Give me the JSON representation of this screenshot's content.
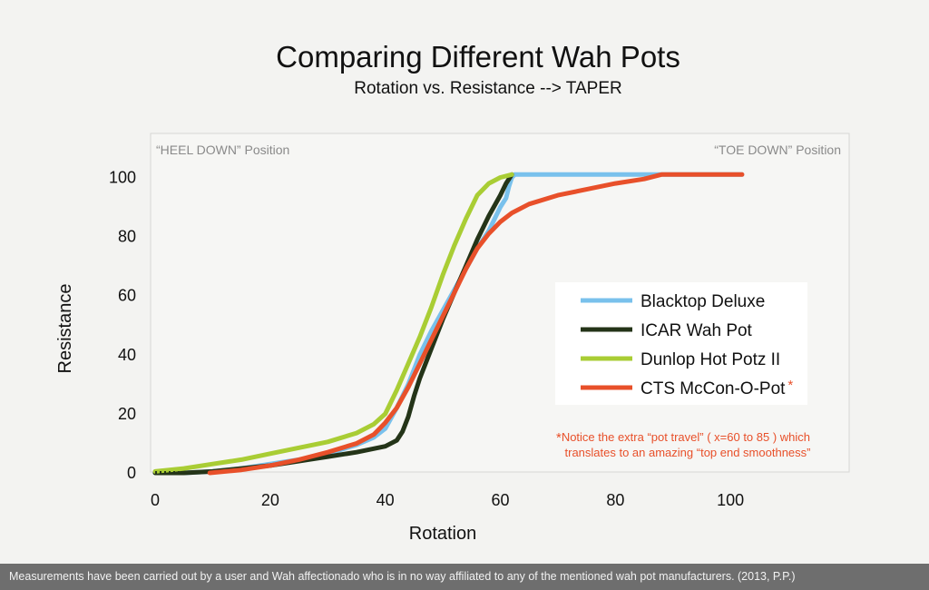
{
  "chart_data": {
    "type": "line",
    "title": "Comparing Different Wah Pots",
    "subtitle": "Rotation vs. Resistance  --> TAPER",
    "xlabel": "Rotation",
    "ylabel": "Resistance",
    "xlim": [
      0,
      120
    ],
    "ylim": [
      0,
      110
    ],
    "xticks": [
      0,
      20,
      40,
      60,
      80,
      100
    ],
    "yticks": [
      0,
      20,
      40,
      60,
      80,
      100
    ],
    "heel_label": "“HEEL DOWN” Position",
    "toe_label": "“TOE DOWN” Position",
    "legend_position": "right",
    "series": [
      {
        "name": "Blacktop Deluxe",
        "color": "#79c1ec",
        "x": [
          0,
          5,
          10,
          15,
          20,
          25,
          30,
          35,
          38,
          40,
          42,
          44,
          46,
          48,
          50,
          52,
          54,
          56,
          58,
          59,
          60,
          61,
          61.5,
          62,
          62.5,
          70,
          80,
          90,
          102
        ],
        "y": [
          0,
          0,
          0.5,
          1.5,
          3,
          4.5,
          6.5,
          9.5,
          12,
          15,
          22,
          30,
          40,
          48,
          55,
          62,
          69,
          76,
          82,
          86,
          90,
          93,
          97,
          100,
          101,
          101,
          101,
          101,
          101
        ]
      },
      {
        "name": "ICAR Wah Pot",
        "color": "#243418",
        "x": [
          0,
          5,
          10,
          15,
          20,
          25,
          30,
          35,
          40,
          42,
          43,
          44,
          45,
          46,
          48,
          50,
          52,
          54,
          56,
          58,
          60,
          61,
          62
        ],
        "y": [
          0,
          0,
          0.5,
          1.5,
          2.5,
          4,
          5.5,
          7,
          9,
          11,
          14,
          19,
          26,
          32,
          42,
          52,
          61,
          70,
          79,
          87,
          94,
          98,
          101
        ]
      },
      {
        "name": "Dunlop Hot Potz II",
        "color": "#a9cd34",
        "x": [
          0,
          5,
          10,
          15,
          20,
          25,
          30,
          35,
          38,
          40,
          42,
          44,
          46,
          48,
          50,
          52,
          54,
          56,
          58,
          60,
          62
        ],
        "y": [
          0.5,
          1.5,
          3,
          4.5,
          6.5,
          8.5,
          10.5,
          13.5,
          16.5,
          20,
          28,
          37,
          46,
          56,
          67,
          77,
          86,
          94,
          98,
          100,
          101
        ]
      },
      {
        "name": "CTS McCon-O-Pot",
        "color": "#e8502a",
        "x": [
          9.5,
          15,
          20,
          25,
          30,
          35,
          38,
          40,
          42,
          44,
          46,
          48,
          50,
          52,
          54,
          56,
          58,
          60,
          62,
          65,
          70,
          75,
          80,
          85,
          88,
          95,
          102
        ],
        "y": [
          0,
          1,
          2.5,
          4.5,
          7,
          10,
          13,
          17,
          22,
          29,
          37,
          45,
          53,
          61,
          69,
          76,
          81,
          85,
          88,
          91,
          94,
          96,
          98,
          99.5,
          101,
          101,
          101
        ]
      }
    ],
    "legend_marker": "*",
    "annotation": {
      "asterisk": "*",
      "line1": "Notice the extra “pot travel” ( x=60 to 85 ) which",
      "line2": "translates to an amazing “top end smoothness”",
      "color": "#e8502a"
    }
  },
  "footer": "Measurements have been carried out by a user and Wah affectionado who is in no way affiliated to any of the mentioned wah pot manufacturers.  (2013, P.P.)"
}
